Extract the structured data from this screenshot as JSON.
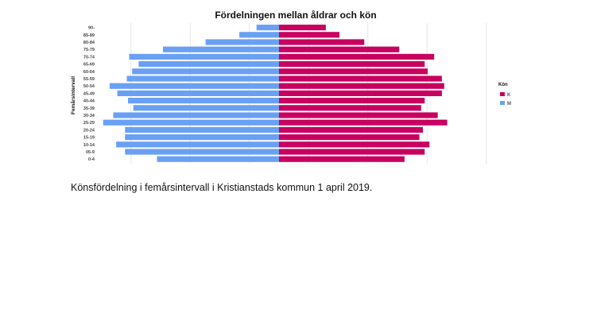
{
  "caption": "Könsfördelning i femårsintervall i Kristianstads kommun 1 april 2019.",
  "chart_data": {
    "type": "bar",
    "orientation": "horizontal",
    "layout": "population-pyramid",
    "title": "Fördelningen mellan åldrar och kön",
    "ylabel": "Femårsintervall",
    "xlabel": "",
    "categories": [
      "90-",
      "85-89",
      "80-84",
      "75-79",
      "70-74",
      "65-69",
      "60-64",
      "55-59",
      "50-54",
      "45-49",
      "40-44",
      "35-39",
      "30-34",
      "25-29",
      "20-24",
      "15-19",
      "10-14",
      "05-9",
      "0-4"
    ],
    "series": [
      {
        "name": "K",
        "side": "right",
        "color": "#c8005f",
        "values": [
          790,
          1020,
          1440,
          2030,
          2620,
          2460,
          2510,
          2750,
          2790,
          2750,
          2460,
          2400,
          2680,
          2840,
          2430,
          2370,
          2540,
          2460,
          2120
        ]
      },
      {
        "name": "M",
        "side": "left",
        "color": "#6aa0f4",
        "values": [
          380,
          670,
          1240,
          1960,
          2530,
          2370,
          2480,
          2570,
          2860,
          2730,
          2550,
          2460,
          2800,
          2970,
          2600,
          2600,
          2750,
          2600,
          2060
        ]
      }
    ],
    "xlim": [
      -3500,
      3500
    ],
    "grid": true,
    "legend": {
      "title": "Kön",
      "position": "right"
    }
  }
}
